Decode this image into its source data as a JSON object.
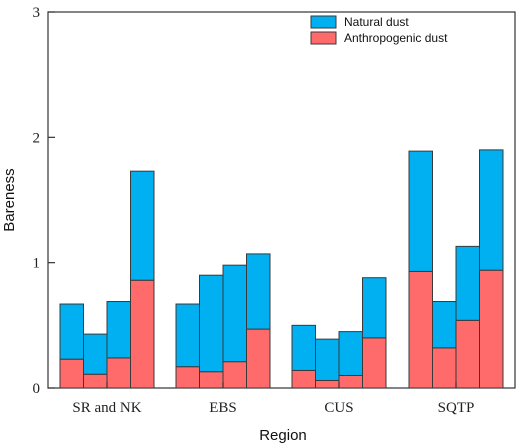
{
  "chart_data": {
    "type": "bar",
    "stacked": true,
    "xlabel": "Region",
    "ylabel": "Bareness",
    "ylim": [
      0,
      3
    ],
    "yticks": [
      "0",
      "1",
      "2",
      "3"
    ],
    "grid": false,
    "legend_position": "top-right",
    "groups": [
      {
        "label": "SR and NK",
        "bars": [
          {
            "anthropogenic": 0.23,
            "natural": 0.44
          },
          {
            "anthropogenic": 0.11,
            "natural": 0.32
          },
          {
            "anthropogenic": 0.24,
            "natural": 0.45
          },
          {
            "anthropogenic": 0.86,
            "natural": 0.87
          }
        ]
      },
      {
        "label": "EBS",
        "bars": [
          {
            "anthropogenic": 0.17,
            "natural": 0.5
          },
          {
            "anthropogenic": 0.13,
            "natural": 0.77
          },
          {
            "anthropogenic": 0.21,
            "natural": 0.77
          },
          {
            "anthropogenic": 0.47,
            "natural": 0.6
          }
        ]
      },
      {
        "label": "CUS",
        "bars": [
          {
            "anthropogenic": 0.14,
            "natural": 0.36
          },
          {
            "anthropogenic": 0.06,
            "natural": 0.33
          },
          {
            "anthropogenic": 0.1,
            "natural": 0.35
          },
          {
            "anthropogenic": 0.4,
            "natural": 0.48
          }
        ]
      },
      {
        "label": "SQTP",
        "bars": [
          {
            "anthropogenic": 0.93,
            "natural": 0.96
          },
          {
            "anthropogenic": 0.32,
            "natural": 0.37
          },
          {
            "anthropogenic": 0.54,
            "natural": 0.59
          },
          {
            "anthropogenic": 0.94,
            "natural": 0.96
          }
        ]
      }
    ],
    "series": [
      {
        "name": "Natural dust",
        "key": "natural",
        "color": "#00b0f0"
      },
      {
        "name": "Anthropogenic dust",
        "key": "anthropogenic",
        "color": "#ff6b6b"
      }
    ]
  }
}
